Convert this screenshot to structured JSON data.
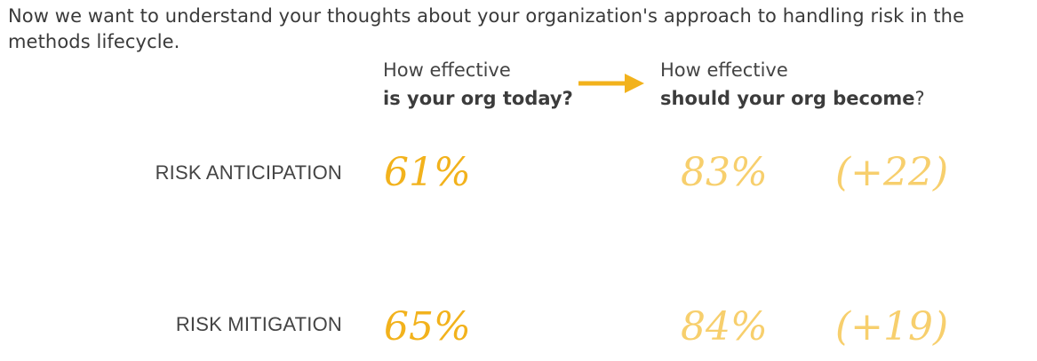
{
  "intro_text": "Now we want to understand your thoughts about your organization's approach to handling risk in the methods lifecycle.",
  "columns": {
    "today": {
      "line1": "How effective",
      "line2": "is your org today?"
    },
    "become": {
      "line1": "How effective",
      "line2_bold": "should your org become",
      "line2_tail": "?"
    }
  },
  "rows": [
    {
      "label": "RISK ANTICIPATION",
      "today": "61%",
      "become": "83%",
      "delta": "(+22)"
    },
    {
      "label": "RISK MITIGATION",
      "today": "65%",
      "become": "84%",
      "delta": "(+19)"
    }
  ],
  "colors": {
    "today_value": "#f2b21c",
    "become_value": "#f7cf6d",
    "arrow": "#f2b21c",
    "text": "#444444"
  },
  "icons": {
    "arrow": "arrow-right-icon"
  }
}
